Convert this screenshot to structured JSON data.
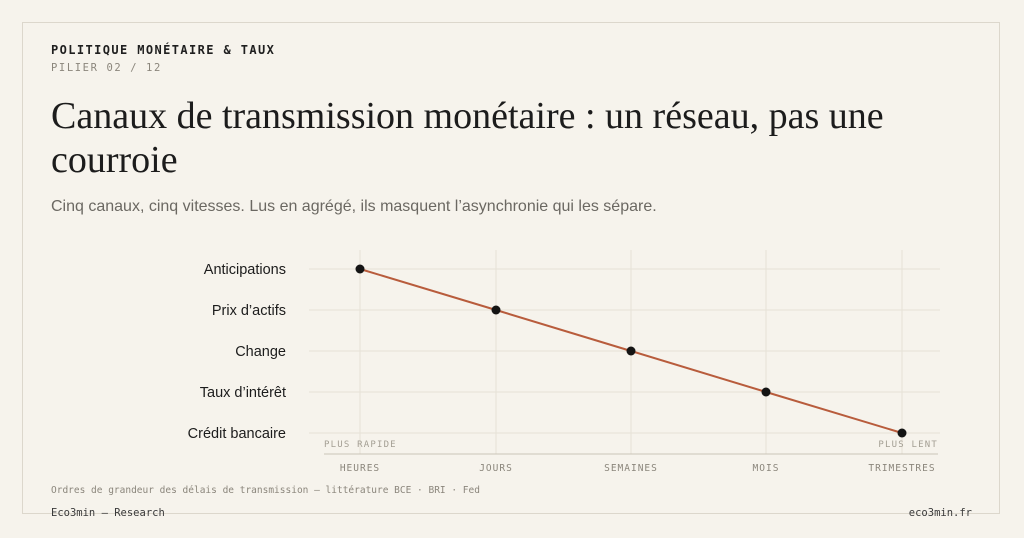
{
  "header": {
    "kicker": "POLITIQUE MONÉTAIRE & TAUX",
    "pillar": "PILIER 02 / 12",
    "title": "Canaux de transmission monétaire : un réseau, pas une courroie",
    "subtitle": "Cinq canaux, cinq vitesses. Lus en agrégé, ils masquent l’asynchronie qui les sépare."
  },
  "chart_data": {
    "type": "scatter",
    "categories": [
      "Anticipations",
      "Prix d’actifs",
      "Change",
      "Taux d’intérêt",
      "Crédit bancaire"
    ],
    "x_ticks": [
      "HEURES",
      "JOURS",
      "SEMAINES",
      "MOIS",
      "TRIMESTRES"
    ],
    "points": [
      {
        "channel": "Anticipations",
        "speed": "HEURES"
      },
      {
        "channel": "Prix d’actifs",
        "speed": "JOURS"
      },
      {
        "channel": "Change",
        "speed": "SEMAINES"
      },
      {
        "channel": "Taux d’intérêt",
        "speed": "MOIS"
      },
      {
        "channel": "Crédit bancaire",
        "speed": "TRIMESTRES"
      }
    ],
    "axis_left_note": "PLUS RAPIDE",
    "axis_right_note": "PLUS LENT",
    "grid": true,
    "line_color": "#b85c3c",
    "point_color": "#141414"
  },
  "footer": {
    "source": "Ordres de grandeur des délais de transmission — littérature BCE · BRI · Fed",
    "brand": "Eco3min — Research",
    "site": "eco3min.fr"
  }
}
